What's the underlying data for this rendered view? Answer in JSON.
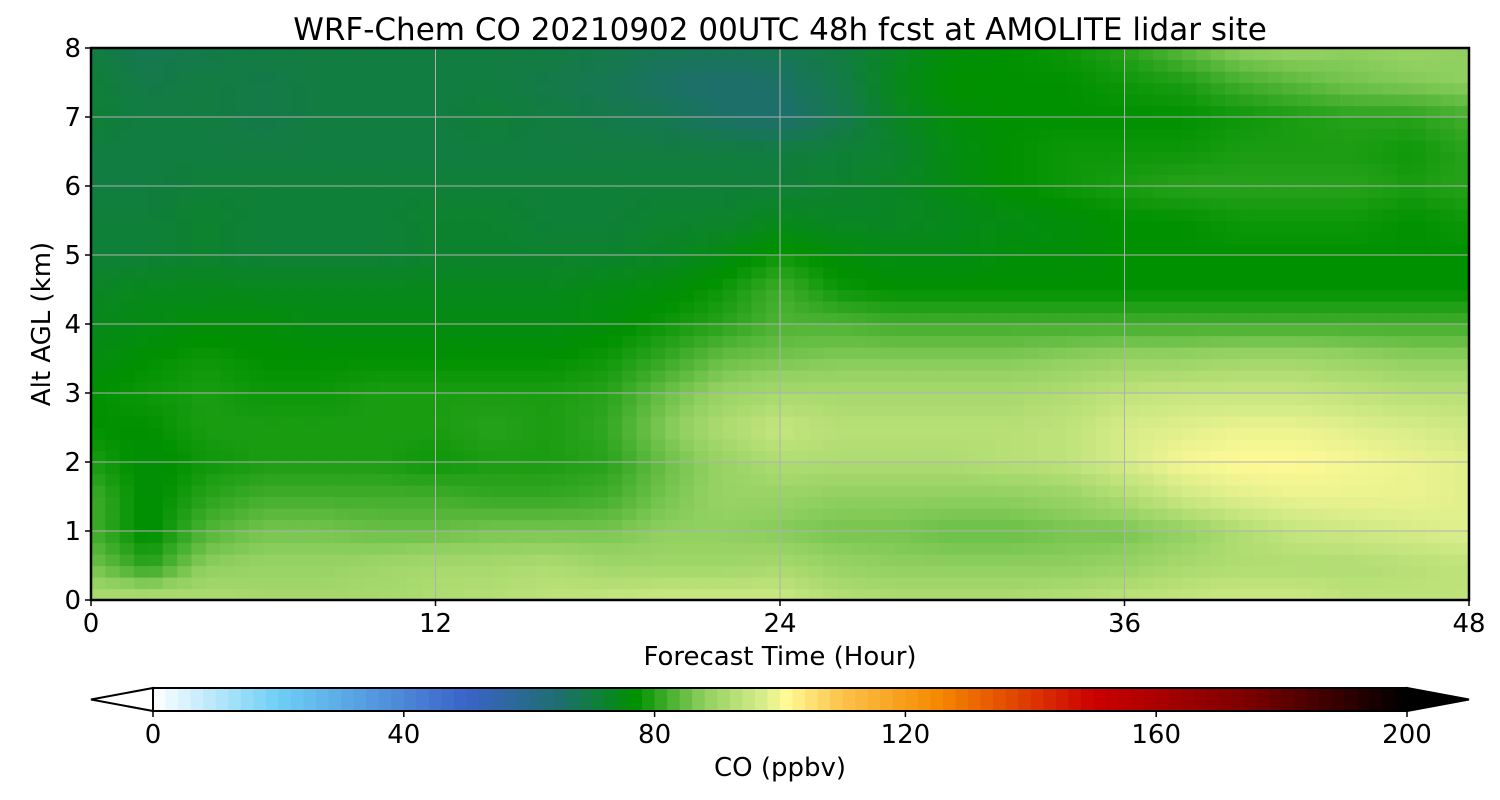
{
  "chart_data": {
    "type": "heatmap",
    "title": "WRF-Chem CO  20210902 00UTC 48h fcst at AMOLITE lidar site",
    "xlabel": "Forecast Time (Hour)",
    "ylabel": "Alt AGL (km)",
    "xlim": [
      0,
      48
    ],
    "ylim": [
      0,
      8
    ],
    "x_ticks": [
      "0",
      "12",
      "24",
      "36",
      "48"
    ],
    "y_ticks": [
      "0",
      "1",
      "2",
      "3",
      "4",
      "5",
      "6",
      "7",
      "8"
    ],
    "grid": true,
    "x": [
      0,
      2,
      4,
      6,
      8,
      10,
      12,
      14,
      16,
      18,
      20,
      22,
      24,
      26,
      28,
      30,
      32,
      34,
      36,
      38,
      40,
      42,
      44,
      46,
      48
    ],
    "y": [
      0,
      0.5,
      1,
      1.5,
      2,
      2.5,
      3,
      3.5,
      4,
      4.5,
      5,
      5.5,
      6,
      6.5,
      7,
      7.5,
      8
    ],
    "z_unit": "ppbv",
    "z": [
      [
        92,
        93,
        92,
        91,
        91,
        91,
        92,
        93,
        94,
        95,
        96,
        96,
        96,
        93,
        92,
        92,
        92,
        93,
        94,
        95,
        96,
        96,
        94,
        94,
        94
      ],
      [
        86,
        80,
        88,
        89,
        89,
        90,
        91,
        91,
        92,
        90,
        90,
        90,
        91,
        89,
        88,
        88,
        88,
        88,
        89,
        91,
        92,
        92,
        92,
        93,
        94
      ],
      [
        82,
        76,
        83,
        86,
        86,
        85,
        85,
        86,
        86,
        86,
        88,
        88,
        87,
        86,
        86,
        85,
        85,
        86,
        86,
        88,
        92,
        95,
        96,
        97,
        98
      ],
      [
        82,
        76,
        80,
        82,
        82,
        82,
        82,
        81,
        81,
        82,
        86,
        89,
        89,
        88,
        88,
        88,
        88,
        89,
        92,
        96,
        98,
        99,
        99,
        99,
        98
      ],
      [
        79,
        76,
        78,
        79,
        79,
        79,
        78,
        79,
        79,
        80,
        85,
        89,
        92,
        92,
        92,
        92,
        93,
        94,
        97,
        100,
        101,
        101,
        100,
        99,
        98
      ],
      [
        77,
        77,
        79,
        79,
        79,
        79,
        79,
        80,
        79,
        81,
        87,
        92,
        95,
        93,
        93,
        93,
        93,
        94,
        97,
        98,
        99,
        99,
        98,
        97,
        96
      ],
      [
        77,
        78,
        79,
        78,
        78,
        79,
        79,
        79,
        79,
        80,
        85,
        89,
        91,
        91,
        91,
        91,
        91,
        92,
        94,
        95,
        95,
        95,
        94,
        93,
        93
      ],
      [
        75,
        77,
        78,
        77,
        77,
        77,
        77,
        77,
        77,
        78,
        81,
        85,
        86,
        87,
        87,
        87,
        87,
        88,
        89,
        89,
        90,
        90,
        89,
        88,
        88
      ],
      [
        74,
        75,
        76,
        76,
        75,
        75,
        75,
        75,
        75,
        76,
        78,
        80,
        83,
        83,
        82,
        82,
        82,
        82,
        82,
        82,
        82,
        82,
        82,
        82,
        82
      ],
      [
        73,
        74,
        74,
        74,
        74,
        74,
        74,
        74,
        74,
        75,
        76,
        78,
        82,
        78,
        77,
        77,
        77,
        77,
        77,
        77,
        77,
        77,
        77,
        77,
        77
      ],
      [
        71,
        71,
        72,
        71,
        71,
        71,
        72,
        72,
        72,
        72,
        73,
        75,
        78,
        76,
        75,
        75,
        76,
        76,
        77,
        77,
        77,
        77,
        77,
        77,
        77
      ],
      [
        71,
        71,
        72,
        71,
        71,
        71,
        72,
        72,
        71,
        71,
        72,
        72,
        74,
        73,
        73,
        74,
        75,
        76,
        77,
        77,
        78,
        78,
        78,
        77,
        78
      ],
      [
        70,
        70,
        71,
        71,
        71,
        71,
        71,
        71,
        71,
        71,
        71,
        71,
        71,
        72,
        73,
        75,
        77,
        78,
        79,
        80,
        80,
        80,
        80,
        79,
        80
      ],
      [
        70,
        70,
        70,
        70,
        70,
        70,
        70,
        70,
        70,
        70,
        70,
        70,
        70,
        71,
        72,
        75,
        77,
        78,
        78,
        78,
        79,
        79,
        79,
        78,
        80
      ],
      [
        71,
        70,
        70,
        69,
        70,
        70,
        70,
        71,
        70,
        69,
        68,
        66,
        65,
        68,
        73,
        76,
        77,
        77,
        77,
        77,
        78,
        79,
        80,
        80,
        82
      ],
      [
        71,
        69,
        70,
        69,
        70,
        70,
        70,
        70,
        69,
        68,
        66,
        65,
        66,
        69,
        74,
        77,
        77,
        77,
        78,
        79,
        82,
        84,
        86,
        87,
        88
      ],
      [
        70,
        68,
        69,
        70,
        70,
        70,
        70,
        70,
        70,
        69,
        68,
        68,
        68,
        70,
        73,
        76,
        77,
        78,
        80,
        84,
        88,
        89,
        88,
        89,
        88
      ]
    ],
    "colorbar": {
      "label": "CO  (ppbv)",
      "min": 0,
      "max": 200,
      "extend": "both",
      "tick_values": [
        0,
        40,
        80,
        120,
        160,
        200
      ],
      "tick_labels": [
        "0",
        "40",
        "80",
        "120",
        "160",
        "200"
      ],
      "stops": [
        {
          "value": 0,
          "color": "#ffffff"
        },
        {
          "value": 20,
          "color": "#6ecff6"
        },
        {
          "value": 50,
          "color": "#3a63c8"
        },
        {
          "value": 65,
          "color": "#1e6e6e"
        },
        {
          "value": 77,
          "color": "#009100"
        },
        {
          "value": 88,
          "color": "#90d060"
        },
        {
          "value": 97,
          "color": "#d6ec88"
        },
        {
          "value": 101,
          "color": "#fffa96"
        },
        {
          "value": 110,
          "color": "#fcc24a"
        },
        {
          "value": 125,
          "color": "#f58a00"
        },
        {
          "value": 150,
          "color": "#cc0000"
        },
        {
          "value": 175,
          "color": "#7a0000"
        },
        {
          "value": 200,
          "color": "#000000"
        }
      ]
    }
  }
}
